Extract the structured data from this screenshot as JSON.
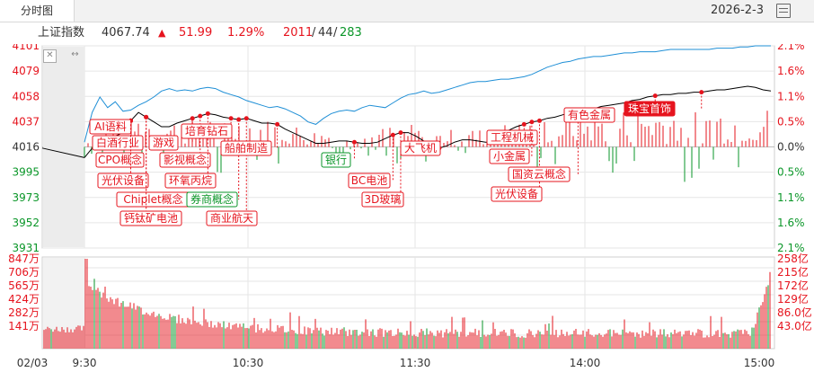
{
  "window": {
    "tab_label": "分时图",
    "date": "2026-2-3"
  },
  "index": {
    "name": "上证指数",
    "price": "4067.74",
    "arrow": "▲",
    "change": "51.99",
    "pct": "1.29%",
    "up": "2011",
    "flat": "44",
    "down": "283"
  },
  "colors": {
    "up": "#e6141e",
    "down": "#0a9628",
    "price_line": "#000000",
    "avg_line": "#1f8fd6",
    "grid": "#e6e6e6"
  },
  "chart_data": [
    {
      "type": "line",
      "series": [],
      "y_ticks_left": [
        "4101",
        "4079",
        "4058",
        "4037",
        "4016",
        "3995",
        "3973",
        "3952",
        "3931"
      ],
      "y_ticks_right": [
        "2.1%",
        "1.6%",
        "1.1%",
        "0.5%",
        "0.0%",
        "0.5%",
        "1.1%",
        "1.6%",
        "2.1%"
      ],
      "ylim": [
        3931,
        4101
      ],
      "baseline": 4016,
      "price": [
        4007,
        4015,
        4020,
        4023,
        4025,
        4028,
        4038,
        4045,
        4041,
        4037,
        4033,
        4033,
        4036,
        4038,
        4040,
        4042,
        4044,
        4043,
        4041,
        4040,
        4039,
        4040,
        4038,
        4036,
        4036,
        4035,
        4031,
        4028,
        4025,
        4022,
        4019,
        4019,
        4020,
        4021,
        4021,
        4020,
        4019,
        4019,
        4020,
        4023,
        4026,
        4028,
        4028,
        4025,
        4021,
        4017,
        4015,
        4017,
        4020,
        4022,
        4022,
        4021,
        4020,
        4020,
        4025,
        4030,
        4033,
        4035,
        4037,
        4038,
        4040,
        4041,
        4043,
        4045,
        4046,
        4047,
        4048,
        4050,
        4051,
        4052,
        4053,
        4055,
        4056,
        4058,
        4059,
        4060,
        4060,
        4061,
        4061,
        4062,
        4062,
        4063,
        4064,
        4064,
        4065,
        4066,
        4067,
        4066,
        4064,
        4063
      ],
      "avg": [
        4020,
        4045,
        4058,
        4049,
        4054,
        4046,
        4047,
        4051,
        4054,
        4058,
        4063,
        4065,
        4063,
        4064,
        4063,
        4065,
        4066,
        4065,
        4062,
        4060,
        4058,
        4055,
        4053,
        4051,
        4049,
        4050,
        4048,
        4045,
        4042,
        4037,
        4035,
        4040,
        4044,
        4046,
        4047,
        4046,
        4049,
        4051,
        4050,
        4049,
        4053,
        4057,
        4060,
        4061,
        4063,
        4061,
        4062,
        4064,
        4066,
        4068,
        4070,
        4071,
        4071,
        4072,
        4073,
        4073,
        4074,
        4075,
        4077,
        4080,
        4083,
        4085,
        4087,
        4088,
        4090,
        4091,
        4092,
        4092,
        4093,
        4094,
        4095,
        4095,
        4096,
        4096,
        4096,
        4097,
        4098,
        4098,
        4098,
        4098,
        4098,
        4098,
        4099,
        4099,
        4099,
        4100,
        4100,
        4101,
        4101,
        4101
      ],
      "annotations": [
        {
          "label": "AI语料",
          "t": 6,
          "side": "up"
        },
        {
          "label": "白酒行业",
          "t": 6,
          "side": "up"
        },
        {
          "label": "CPO概念",
          "t": 6,
          "side": "up"
        },
        {
          "label": "光伏设备",
          "t": 6,
          "side": "up"
        },
        {
          "label": "Chiplet概念",
          "t": 8,
          "side": "up"
        },
        {
          "label": "钙钛矿电池",
          "t": 8,
          "side": "up"
        },
        {
          "label": "游戏",
          "t": 14,
          "side": "up"
        },
        {
          "label": "影视概念",
          "t": 15,
          "side": "up"
        },
        {
          "label": "环氧丙烷",
          "t": 16,
          "side": "up"
        },
        {
          "label": "培育钻石",
          "t": 19,
          "side": "up"
        },
        {
          "label": "券商概念",
          "t": 20,
          "side": "down"
        },
        {
          "label": "商业航天",
          "t": 21,
          "side": "up"
        },
        {
          "label": "船舶制造",
          "t": 25,
          "side": "up"
        },
        {
          "label": "银行",
          "t": 35,
          "side": "down"
        },
        {
          "label": "BC电池",
          "t": 40,
          "side": "up"
        },
        {
          "label": "3D玻璃",
          "t": 41,
          "side": "up"
        },
        {
          "label": "大飞机",
          "t": 46,
          "side": "up"
        },
        {
          "label": "工程机械",
          "t": 57,
          "side": "up"
        },
        {
          "label": "小金属",
          "t": 58,
          "side": "up"
        },
        {
          "label": "光伏设备",
          "t": 59,
          "side": "up"
        },
        {
          "label": "国资云概念",
          "t": 64,
          "side": "up"
        },
        {
          "label": "有色金属",
          "t": 74,
          "side": "up"
        },
        {
          "label": "珠宝首饰",
          "t": 80,
          "side": "up",
          "highlight": true
        }
      ]
    },
    {
      "type": "bar",
      "y_ticks_left": [
        "847万",
        "706万",
        "565万",
        "424万",
        "282万",
        "141万"
      ],
      "y_ticks_right": [
        "258亿",
        "215亿",
        "172亿",
        "129亿",
        "86.0亿",
        "43.0亿"
      ],
      "ylim": [
        0,
        847
      ],
      "x_ticks": [
        "02/03",
        "9:30",
        "10:30",
        "11:30",
        "14:00",
        "15:00"
      ]
    }
  ]
}
